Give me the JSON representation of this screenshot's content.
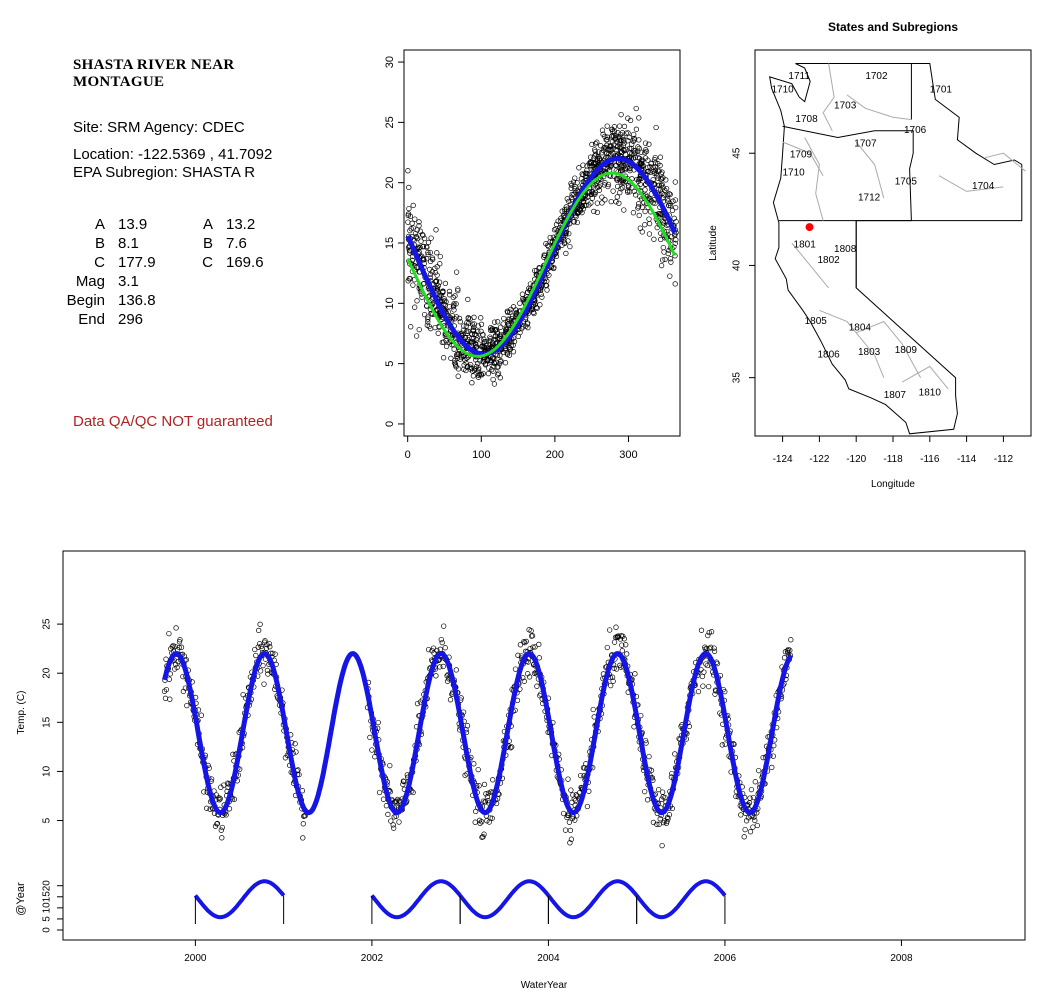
{
  "site_panel": {
    "title": "SHASTA RIVER NEAR\nMONTAGUE",
    "site_line": "Site: SRM     Agency: CDEC",
    "location_line": "Location: -122.5369 , 41.7092",
    "subregion_line": "EPA Subregion: SHASTA R",
    "params_left": [
      {
        "name": "A",
        "value": "13.9"
      },
      {
        "name": "B",
        "value": "8.1"
      },
      {
        "name": "C",
        "value": "177.9"
      },
      {
        "name": "Mag",
        "value": "3.1"
      },
      {
        "name": "Begin",
        "value": "136.8"
      },
      {
        "name": "End",
        "value": "296"
      }
    ],
    "params_right": [
      {
        "name": "A",
        "value": "13.2"
      },
      {
        "name": "B",
        "value": "7.6"
      },
      {
        "name": "C",
        "value": "169.6"
      }
    ],
    "qa_note": "Data QA/QC NOT guaranteed"
  },
  "colors": {
    "fit_blue": "#1515e6",
    "fit_green": "#22dd22",
    "site_red": "#ff0000",
    "qa_text": "#b22222",
    "region_grey": "#aaaaaa"
  },
  "chart_data": [
    {
      "id": "seasonal",
      "type": "scatter",
      "title": "",
      "xlabel": "",
      "ylabel": "",
      "xlim": [
        -5,
        370
      ],
      "ylim": [
        -1,
        31
      ],
      "xticks": [
        0,
        100,
        200,
        300
      ],
      "yticks": [
        0,
        5,
        10,
        15,
        20,
        25,
        30
      ],
      "points_model": {
        "mean": 13.9,
        "amplitude": 8.1,
        "phase_day": 177.9,
        "noise_sd": 2.0,
        "n": 1500
      },
      "series": [
        {
          "kind": "points",
          "color": "#000000"
        },
        {
          "kind": "curve",
          "color": "#1515e6",
          "mean": 13.9,
          "amplitude": 8.1,
          "phase_day": 177.9
        },
        {
          "kind": "curve",
          "color": "#22dd22",
          "mean": 13.2,
          "amplitude": 7.6,
          "phase_day": 169.6
        }
      ]
    },
    {
      "id": "map",
      "type": "map",
      "title": "States and Subregions",
      "xlabel": "Longitude",
      "ylabel": "Latitude",
      "xlim": [
        -125.5,
        -110.5
      ],
      "ylim": [
        32.4,
        49.6
      ],
      "xticks": [
        -124,
        -122,
        -120,
        -118,
        -116,
        -114,
        -112
      ],
      "yticks": [
        35,
        40,
        45
      ],
      "site": {
        "lon": -122.5369,
        "lat": 41.7092
      },
      "region_labels": [
        {
          "text": "1711",
          "lon": -123.1,
          "lat": 48.3
        },
        {
          "text": "1702",
          "lon": -118.9,
          "lat": 48.3
        },
        {
          "text": "1710",
          "lon": -124.0,
          "lat": 47.7
        },
        {
          "text": "1701",
          "lon": -115.4,
          "lat": 47.7
        },
        {
          "text": "1703",
          "lon": -120.6,
          "lat": 47.0
        },
        {
          "text": "1708",
          "lon": -122.7,
          "lat": 46.4
        },
        {
          "text": "1706",
          "lon": -116.8,
          "lat": 45.9
        },
        {
          "text": "1707",
          "lon": -119.5,
          "lat": 45.3
        },
        {
          "text": "1709",
          "lon": -123.0,
          "lat": 44.8
        },
        {
          "text": "1710",
          "lon": -123.4,
          "lat": 44.0
        },
        {
          "text": "1705",
          "lon": -117.3,
          "lat": 43.6
        },
        {
          "text": "1704",
          "lon": -113.1,
          "lat": 43.4
        },
        {
          "text": "1712",
          "lon": -119.3,
          "lat": 42.9
        },
        {
          "text": "1801",
          "lon": -122.8,
          "lat": 40.8
        },
        {
          "text": "1808",
          "lon": -120.6,
          "lat": 40.6
        },
        {
          "text": "1802",
          "lon": -121.5,
          "lat": 40.1
        },
        {
          "text": "1805",
          "lon": -122.2,
          "lat": 37.4
        },
        {
          "text": "1804",
          "lon": -119.8,
          "lat": 37.1
        },
        {
          "text": "1806",
          "lon": -121.5,
          "lat": 35.9
        },
        {
          "text": "1803",
          "lon": -119.3,
          "lat": 36.0
        },
        {
          "text": "1809",
          "lon": -117.3,
          "lat": 36.1
        },
        {
          "text": "1810",
          "lon": -116.0,
          "lat": 34.2
        },
        {
          "text": "1807",
          "lon": -117.9,
          "lat": 34.1
        }
      ]
    },
    {
      "id": "timeseries",
      "type": "line",
      "title": "",
      "xlabel": "WaterYear",
      "ylabel": "Temp. (C)",
      "ylabel_lower": "@Year",
      "xlim": [
        1998.5,
        2009.4
      ],
      "ylim_upper": [
        2,
        30
      ],
      "ylim_lower": [
        0,
        28
      ],
      "xticks": [
        2000,
        2002,
        2004,
        2006,
        2008
      ],
      "yticks_upper": [
        5,
        10,
        15,
        20,
        25
      ],
      "yticks_lower": [
        0,
        5,
        10,
        15,
        20
      ],
      "fit": {
        "mean": 13.9,
        "amplitude": 8.1,
        "phase_day": 177.9
      },
      "fit_range": [
        1999.65,
        2006.75
      ],
      "observed_ranges": [
        [
          1999.65,
          2001.25
        ],
        [
          2001.95,
          2006.75
        ]
      ],
      "annual_segments": [
        2000,
        2002,
        2003,
        2004,
        2005
      ]
    }
  ]
}
